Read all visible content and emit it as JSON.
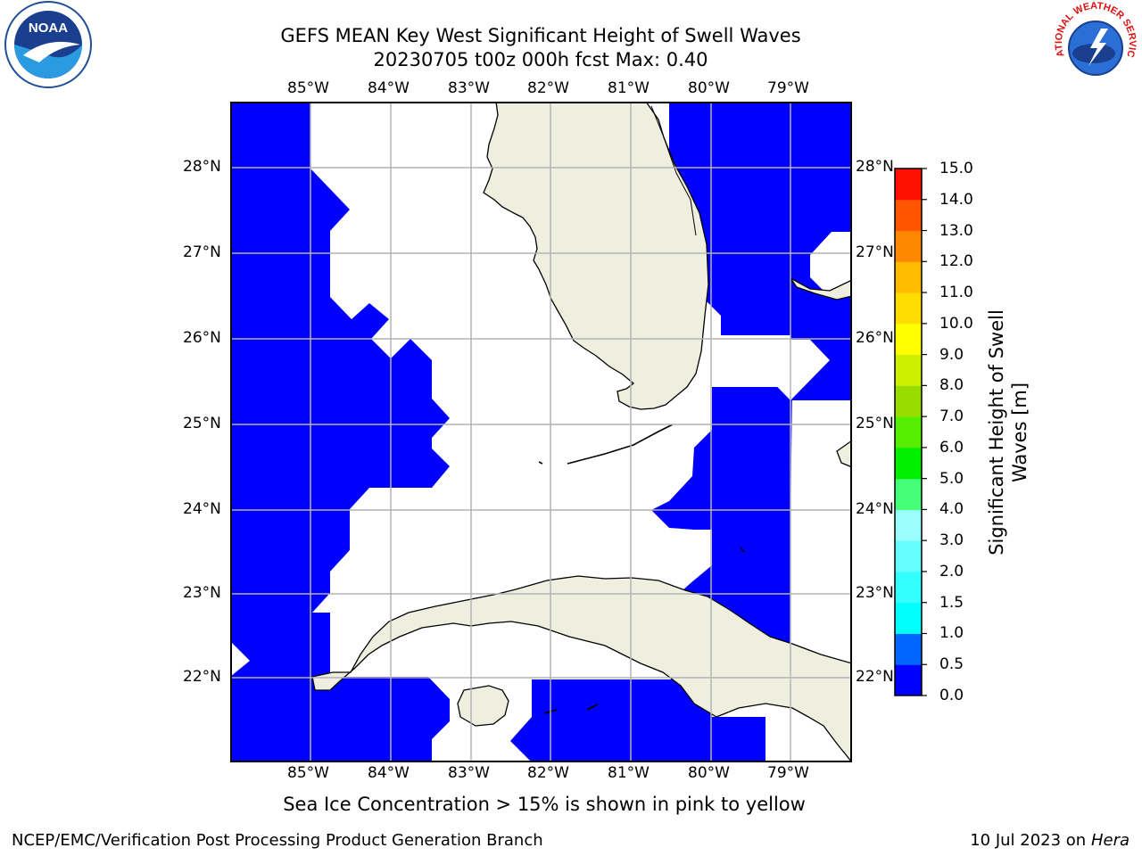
{
  "title": {
    "line1": "GEFS MEAN Key West Significant Height of Swell Waves",
    "line2": "20230705 t00z 000h fcst   Max: 0.40"
  },
  "map": {
    "lon_labels": [
      "85°W",
      "84°W",
      "83°W",
      "82°W",
      "81°W",
      "80°W",
      "79°W"
    ],
    "lat_labels": [
      "28°N",
      "27°N",
      "26°N",
      "25°N",
      "24°N",
      "23°N",
      "22°N"
    ],
    "land_color": "#efefdf",
    "field_color": "#0000ff"
  },
  "colorbar": {
    "title_line1": "Significant Height of Swell",
    "title_line2": "Waves [m]",
    "ticks": [
      "0.0",
      "0.5",
      "1.0",
      "1.5",
      "2.0",
      "3.0",
      "4.0",
      "5.0",
      "6.0",
      "7.0",
      "8.0",
      "9.0",
      "10.0",
      "11.0",
      "12.0",
      "13.0",
      "14.0",
      "15.0"
    ],
    "colors": [
      "#0000ff",
      "#0066ff",
      "#00ffff",
      "#33ffff",
      "#66ffff",
      "#99ffff",
      "#44ff77",
      "#00ee00",
      "#55ee00",
      "#99dd00",
      "#ccee00",
      "#ffff00",
      "#ffdd00",
      "#ffbb00",
      "#ff8800",
      "#ff5500",
      "#ff1100"
    ]
  },
  "caption": "Sea Ice Concentration > 15% is shown in pink to yellow",
  "footer": {
    "left": "NCEP/EMC/Verification Post Processing Product Generation Branch",
    "date": "10 Jul 2023 on ",
    "host": "Hera"
  },
  "logos": {
    "noaa_text": "NOAA",
    "nws_text": "NATIONAL WEATHER SERVICE"
  }
}
